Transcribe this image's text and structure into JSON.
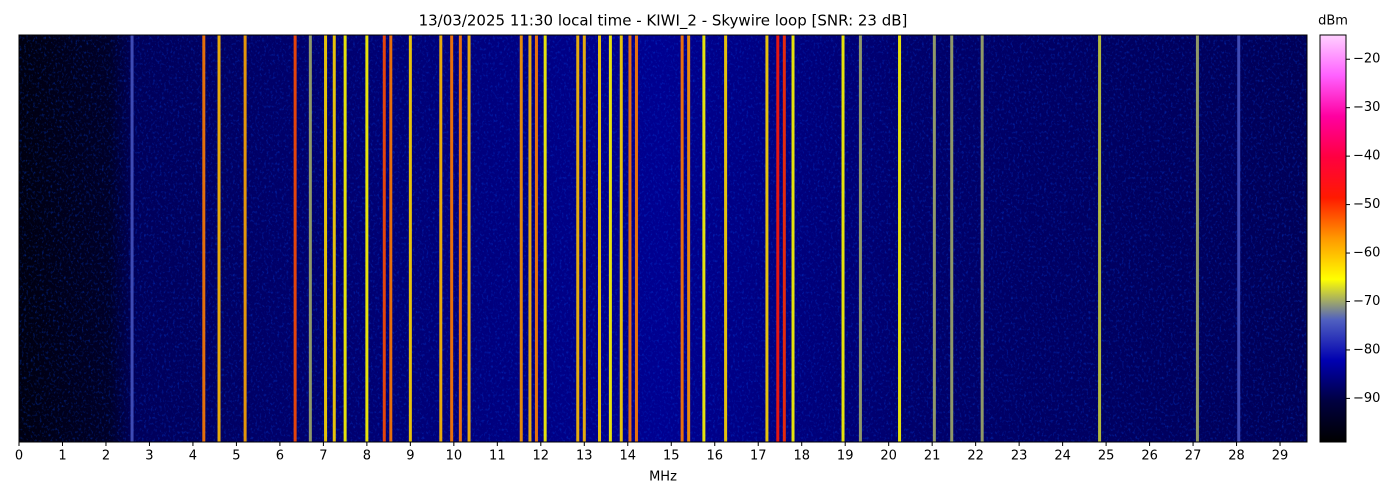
{
  "chart_data": {
    "type": "spectrogram",
    "title": "13/03/2025 11:30 local time - KIWI_2 - Skywire loop [SNR: 23 dB]",
    "x_label": "MHz",
    "colorbar_label": "dBm",
    "xlim": [
      0,
      29.62
    ],
    "xticks": [
      0,
      1,
      2,
      3,
      4,
      5,
      6,
      7,
      8,
      9,
      10,
      11,
      12,
      13,
      14,
      15,
      16,
      17,
      18,
      19,
      20,
      21,
      22,
      23,
      24,
      25,
      26,
      27,
      28,
      29
    ],
    "clim": [
      -99,
      -15
    ],
    "cticks": [
      {
        "value": -20,
        "label": "−20"
      },
      {
        "value": -30,
        "label": "−30"
      },
      {
        "value": -40,
        "label": "−40"
      },
      {
        "value": -50,
        "label": "−50"
      },
      {
        "value": -60,
        "label": "−60"
      },
      {
        "value": -70,
        "label": "−70"
      },
      {
        "value": -80,
        "label": "−80"
      },
      {
        "value": -90,
        "label": "−90"
      }
    ],
    "colormap": [
      "#000000",
      "#000040",
      "#0000b0",
      "#5060c0",
      "#ffff00",
      "#ff9900",
      "#ff1a00",
      "#ff0040",
      "#ff00a0",
      "#ff60ff",
      "#ffd0ff"
    ],
    "x": [
      2.6,
      4.25,
      4.6,
      5.2,
      6.35,
      6.7,
      7.05,
      7.25,
      7.5,
      8.0,
      8.4,
      8.55,
      9.0,
      9.7,
      9.95,
      10.15,
      10.35,
      11.55,
      11.75,
      11.9,
      12.1,
      12.85,
      13.0,
      13.35,
      13.6,
      13.85,
      14.05,
      14.2,
      15.25,
      15.4,
      15.75,
      16.25,
      17.2,
      17.45,
      17.6,
      17.8,
      18.95,
      19.35,
      20.25,
      21.05,
      21.45,
      22.15,
      24.85,
      27.1,
      28.05
    ],
    "values": [
      -75,
      -55,
      -60,
      -58,
      -52,
      -70,
      -62,
      -62,
      -65,
      -65,
      -52,
      -55,
      -62,
      -60,
      -55,
      -55,
      -60,
      -57,
      -60,
      -55,
      -65,
      -60,
      -60,
      -62,
      -65,
      -62,
      -55,
      -55,
      -55,
      -57,
      -65,
      -62,
      -62,
      -48,
      -50,
      -65,
      -65,
      -70,
      -65,
      -70,
      -70,
      -70,
      -68,
      -70,
      -75
    ]
  }
}
